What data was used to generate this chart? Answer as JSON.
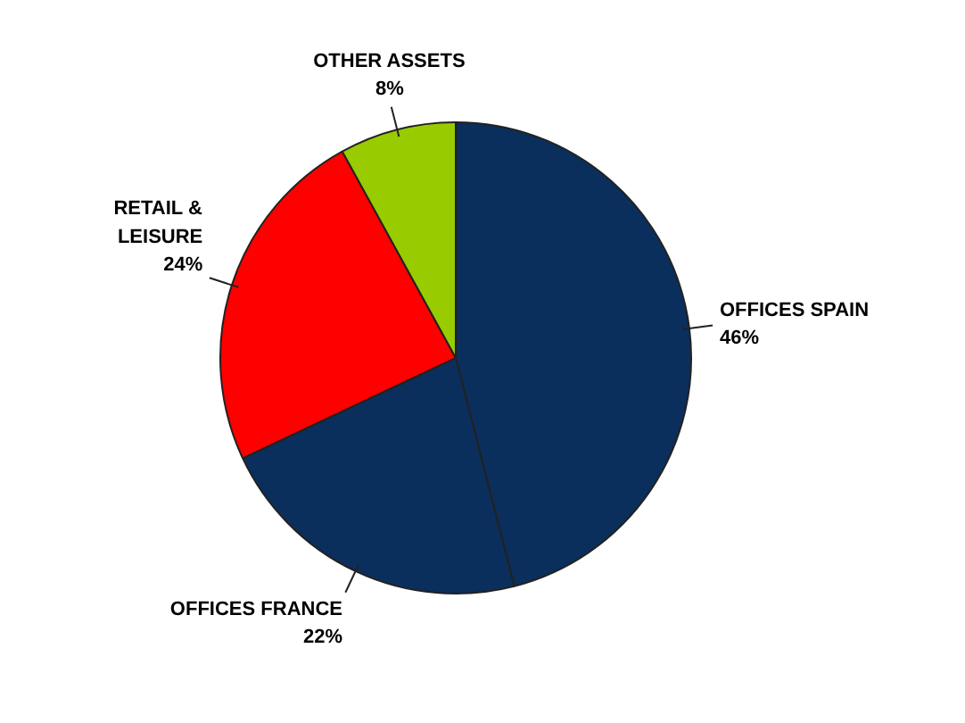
{
  "chart_data": {
    "type": "pie",
    "categories": [
      "OFFICES SPAIN",
      "OFFICES FRANCE",
      "RETAIL & LEISURE",
      "OTHER ASSETS"
    ],
    "values": [
      46,
      22,
      24,
      8
    ],
    "colors": [
      "#0a2f5c",
      "#0a2f5c",
      "#ff0000",
      "#99cc00"
    ],
    "value_labels": [
      "46%",
      "22%",
      "24%",
      "8%"
    ]
  }
}
